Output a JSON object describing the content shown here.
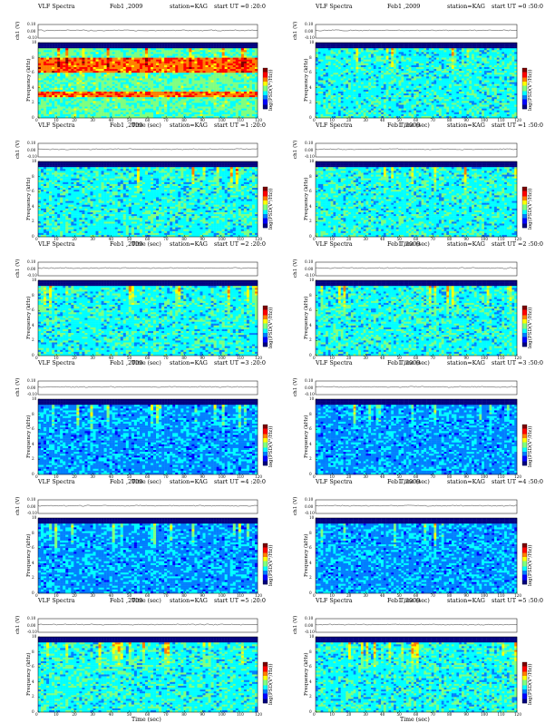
{
  "chart_data": [
    {
      "type": "heatmap",
      "panel_title": "VLF Spectra",
      "date": "Feb1 ,2009",
      "station": "station=KAG",
      "start": "start  UT =0 :20:0",
      "ylabel_top": "ch1 (V)",
      "ylabel_main": "Frequency  (kHz)",
      "xlabel": "Time  (sec)",
      "cbar_label": "log(PSD(V²/Hz))",
      "xlim": [
        0,
        120
      ],
      "ylim": [
        0,
        10
      ],
      "top_ylim": [
        -0.1,
        0.1
      ],
      "x_ticks": [
        "0",
        "10",
        "20",
        "30",
        "40",
        "50",
        "60",
        "70",
        "80",
        "90",
        "100",
        "110",
        "120"
      ],
      "y_ticks": [
        "0",
        "2",
        "4",
        "6",
        "8",
        "10"
      ],
      "top_ticks": [
        "-0.10",
        "0.00",
        "0.10"
      ],
      "cbar_ticks": [
        "-",
        "-"
      ],
      "bands_khz": [
        [
          6.0,
          8.0
        ],
        [
          2.8,
          3.6
        ]
      ],
      "level": "high"
    },
    {
      "type": "heatmap",
      "panel_title": "VLF Spectra",
      "date": "Feb1 ,2009",
      "station": "station=KAG",
      "start": "start  UT =0 :50:0",
      "ylabel_top": "ch1 (V)",
      "ylabel_main": "Frequency  (kHz)",
      "xlabel": "Time  (sec)",
      "cbar_label": "log(PSD(V²/Hz))",
      "xlim": [
        0,
        120
      ],
      "ylim": [
        0,
        10
      ],
      "top_ylim": [
        -0.1,
        0.1
      ],
      "x_ticks": [
        "0",
        "10",
        "20",
        "30",
        "40",
        "50",
        "60",
        "70",
        "80",
        "90",
        "100",
        "110",
        "120"
      ],
      "y_ticks": [
        "0",
        "2",
        "4",
        "6",
        "8",
        "10"
      ],
      "top_ticks": [
        "-0.10",
        "0.00",
        "0.10"
      ],
      "cbar_ticks": [
        "-",
        "-"
      ],
      "bands_khz": [],
      "level": "medium"
    },
    {
      "type": "heatmap",
      "panel_title": "VLF Spectra",
      "date": "Feb1 ,2009",
      "station": "station=KAG",
      "start": "start  UT =1 :20:0",
      "ylabel_top": "ch1 (V)",
      "ylabel_main": "Frequency  (kHz)",
      "xlabel": "Time  (sec)",
      "cbar_label": "log(PSD(V²/Hz))",
      "xlim": [
        0,
        120
      ],
      "ylim": [
        0,
        10
      ],
      "top_ylim": [
        -0.1,
        0.1
      ],
      "x_ticks": [
        "0",
        "10",
        "20",
        "30",
        "40",
        "50",
        "60",
        "70",
        "80",
        "90",
        "100",
        "110",
        "120"
      ],
      "y_ticks": [
        "0",
        "2",
        "4",
        "6",
        "8",
        "10"
      ],
      "top_ticks": [
        "-0.10",
        "0.00",
        "0.10"
      ],
      "cbar_ticks": [
        "-",
        "-"
      ],
      "bands_khz": [],
      "level": "medium"
    },
    {
      "type": "heatmap",
      "panel_title": "VLF Spectra",
      "date": "Feb1 ,2009",
      "station": "station=KAG",
      "start": "start  UT =1 :50:0",
      "ylabel_top": "ch1 (V)",
      "ylabel_main": "Frequency  (kHz)",
      "xlabel": "Time  (sec)",
      "cbar_label": "log(PSD(V²/Hz))",
      "xlim": [
        0,
        120
      ],
      "ylim": [
        0,
        10
      ],
      "top_ylim": [
        -0.1,
        0.1
      ],
      "x_ticks": [
        "0",
        "10",
        "20",
        "30",
        "40",
        "50",
        "60",
        "70",
        "80",
        "90",
        "100",
        "110",
        "120"
      ],
      "y_ticks": [
        "0",
        "2",
        "4",
        "6",
        "8",
        "10"
      ],
      "top_ticks": [
        "-0.10",
        "0.00",
        "0.10"
      ],
      "cbar_ticks": [
        "-",
        "-"
      ],
      "bands_khz": [],
      "level": "medium"
    },
    {
      "type": "heatmap",
      "panel_title": "VLF Spectra",
      "date": "Feb1 ,2009",
      "station": "station=KAG",
      "start": "start  UT =2 :20:0",
      "ylabel_top": "ch1 (V)",
      "ylabel_main": "Frequency  (kHz)",
      "xlabel": "Time  (sec)",
      "cbar_label": "log(PSD(V²/Hz))",
      "xlim": [
        0,
        120
      ],
      "ylim": [
        0,
        10
      ],
      "top_ylim": [
        -0.1,
        0.1
      ],
      "x_ticks": [
        "0",
        "10",
        "20",
        "30",
        "40",
        "50",
        "60",
        "70",
        "80",
        "90",
        "100",
        "110",
        "120"
      ],
      "y_ticks": [
        "0",
        "2",
        "4",
        "6",
        "8",
        "10"
      ],
      "top_ticks": [
        "-0.10",
        "0.00",
        "0.10"
      ],
      "cbar_ticks": [
        "-",
        "-"
      ],
      "bands_khz": [],
      "level": "medium"
    },
    {
      "type": "heatmap",
      "panel_title": "VLF Spectra",
      "date": "Feb1 ,2009",
      "station": "station=KAG",
      "start": "start  UT =2 :50:0",
      "ylabel_top": "ch1 (V)",
      "ylabel_main": "Frequency  (kHz)",
      "xlabel": "Time  (sec)",
      "cbar_label": "log(PSD(V²/Hz))",
      "xlim": [
        0,
        120
      ],
      "ylim": [
        0,
        10
      ],
      "top_ylim": [
        -0.1,
        0.1
      ],
      "x_ticks": [
        "0",
        "10",
        "20",
        "30",
        "40",
        "50",
        "60",
        "70",
        "80",
        "90",
        "100",
        "110",
        "120"
      ],
      "y_ticks": [
        "0",
        "2",
        "4",
        "6",
        "8",
        "10"
      ],
      "top_ticks": [
        "-0.10",
        "0.00",
        "0.10"
      ],
      "cbar_ticks": [
        "-",
        "-"
      ],
      "bands_khz": [],
      "level": "medium"
    },
    {
      "type": "heatmap",
      "panel_title": "VLF Spectra",
      "date": "Feb1 ,2009",
      "station": "station=KAG",
      "start": "start  UT =3 :20:0",
      "ylabel_top": "ch1 (V)",
      "ylabel_main": "Frequency  (kHz)",
      "xlabel": "Time  (sec)",
      "cbar_label": "log(PSD(V²/Hz))",
      "xlim": [
        0,
        120
      ],
      "ylim": [
        0,
        10
      ],
      "top_ylim": [
        -0.1,
        0.1
      ],
      "x_ticks": [
        "0",
        "10",
        "20",
        "30",
        "40",
        "50",
        "60",
        "70",
        "80",
        "90",
        "100",
        "110",
        "120"
      ],
      "y_ticks": [
        "0",
        "2",
        "4",
        "6",
        "8",
        "10"
      ],
      "top_ticks": [
        "-0.10",
        "0.00",
        "0.10"
      ],
      "cbar_ticks": [
        "-",
        "-"
      ],
      "bands_khz": [],
      "level": "low"
    },
    {
      "type": "heatmap",
      "panel_title": "VLF Spectra",
      "date": "Feb1 ,2009",
      "station": "station=KAG",
      "start": "start  UT =3 :50:0",
      "ylabel_top": "ch1 (V)",
      "ylabel_main": "Frequency  (kHz)",
      "xlabel": "Time  (sec)",
      "cbar_label": "log(PSD(V²/Hz))",
      "xlim": [
        0,
        120
      ],
      "ylim": [
        0,
        10
      ],
      "top_ylim": [
        -0.1,
        0.1
      ],
      "x_ticks": [
        "0",
        "10",
        "20",
        "30",
        "40",
        "50",
        "60",
        "70",
        "80",
        "90",
        "100",
        "110",
        "120"
      ],
      "y_ticks": [
        "0",
        "2",
        "4",
        "6",
        "8",
        "10"
      ],
      "top_ticks": [
        "-0.10",
        "0.00",
        "0.10"
      ],
      "cbar_ticks": [
        "-",
        "-"
      ],
      "bands_khz": [],
      "level": "low"
    },
    {
      "type": "heatmap",
      "panel_title": "VLF Spectra",
      "date": "Feb1 ,2009",
      "station": "station=KAG",
      "start": "start  UT =4 :20:0",
      "ylabel_top": "ch1 (V)",
      "ylabel_main": "Frequency  (kHz)",
      "xlabel": "Time  (sec)",
      "cbar_label": "log(PSD(V²/Hz))",
      "xlim": [
        0,
        120
      ],
      "ylim": [
        0,
        10
      ],
      "top_ylim": [
        -0.1,
        0.1
      ],
      "x_ticks": [
        "0",
        "10",
        "20",
        "30",
        "40",
        "50",
        "60",
        "70",
        "80",
        "90",
        "100",
        "110",
        "120"
      ],
      "y_ticks": [
        "0",
        "2",
        "4",
        "6",
        "8",
        "10"
      ],
      "top_ticks": [
        "-0.10",
        "0.00",
        "0.10"
      ],
      "cbar_ticks": [
        "-",
        "-"
      ],
      "bands_khz": [],
      "level": "low"
    },
    {
      "type": "heatmap",
      "panel_title": "VLF Spectra",
      "date": "Feb1 ,2009",
      "station": "station=KAG",
      "start": "start  UT =4 :50:0",
      "ylabel_top": "ch1 (V)",
      "ylabel_main": "Frequency  (kHz)",
      "xlabel": "Time  (sec)",
      "cbar_label": "log(PSD(V²/Hz))",
      "xlim": [
        0,
        120
      ],
      "ylim": [
        0,
        10
      ],
      "top_ylim": [
        -0.1,
        0.1
      ],
      "x_ticks": [
        "0",
        "10",
        "20",
        "30",
        "40",
        "50",
        "60",
        "70",
        "80",
        "90",
        "100",
        "110",
        "120"
      ],
      "y_ticks": [
        "0",
        "2",
        "4",
        "6",
        "8",
        "10"
      ],
      "top_ticks": [
        "-0.10",
        "0.00",
        "0.10"
      ],
      "cbar_ticks": [
        "-",
        "-"
      ],
      "bands_khz": [],
      "level": "low"
    },
    {
      "type": "heatmap",
      "panel_title": "VLF Spectra",
      "date": "Feb1 ,2009",
      "station": "station=KAG",
      "start": "start  UT =5 :20:0",
      "ylabel_top": "ch1 (V)",
      "ylabel_main": "Frequency  (kHz)",
      "xlabel": "Time  (sec)",
      "cbar_label": "log(PSD(V²/Hz))",
      "xlim": [
        0,
        120
      ],
      "ylim": [
        0,
        10
      ],
      "top_ylim": [
        -0.1,
        0.1
      ],
      "x_ticks": [
        "0",
        "10",
        "20",
        "30",
        "40",
        "50",
        "60",
        "70",
        "80",
        "90",
        "100",
        "110",
        "120"
      ],
      "y_ticks": [
        "0",
        "2",
        "4",
        "6",
        "8",
        "10"
      ],
      "top_ticks": [
        "-0.10",
        "0.00",
        "0.10"
      ],
      "cbar_ticks": [
        "-",
        "-"
      ],
      "bands_khz": [],
      "level": "medium"
    },
    {
      "type": "heatmap",
      "panel_title": "VLF Spectra",
      "date": "Feb1 ,2009",
      "station": "station=KAG",
      "start": "start  UT =5 :50:0",
      "ylabel_top": "ch1 (V)",
      "ylabel_main": "Frequency  (kHz)",
      "xlabel": "Time  (sec)",
      "cbar_label": "log(PSD(V²/Hz))",
      "xlim": [
        0,
        120
      ],
      "ylim": [
        0,
        10
      ],
      "top_ylim": [
        -0.1,
        0.1
      ],
      "x_ticks": [
        "0",
        "10",
        "20",
        "30",
        "40",
        "50",
        "60",
        "70",
        "80",
        "90",
        "100",
        "110",
        "120"
      ],
      "y_ticks": [
        "0",
        "2",
        "4",
        "6",
        "8",
        "10"
      ],
      "top_ticks": [
        "-0.10",
        "0.00",
        "0.10"
      ],
      "cbar_ticks": [
        "-",
        "-"
      ],
      "bands_khz": [],
      "level": "medium"
    }
  ],
  "colors": {
    "jet": [
      "#00007f",
      "#0000ff",
      "#007fff",
      "#00ffff",
      "#7fff7f",
      "#ffff00",
      "#ff7f00",
      "#ff0000",
      "#7f0000"
    ]
  }
}
